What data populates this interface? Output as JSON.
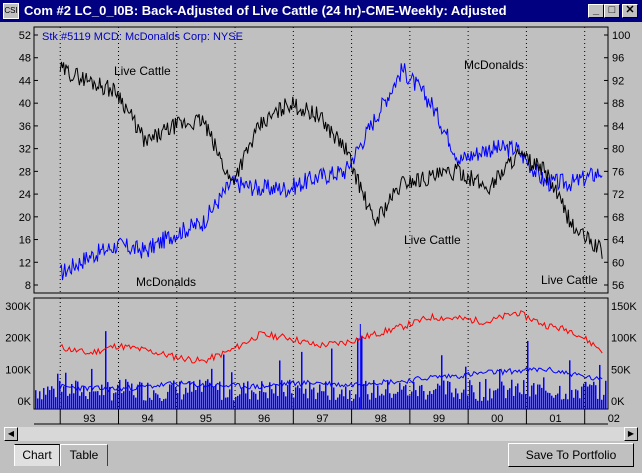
{
  "window": {
    "title": "Com #2 LC_0_I0B: Back-Adjusted of Live Cattle (24 hr)-CME-Weekly: Adjusted",
    "sys_icon": "CSI",
    "minimize_glyph": "_",
    "maximize_glyph": "□",
    "close_glyph": "✕"
  },
  "price_panel": {
    "overlay_label": "Stk #5119 MCD: McDonalds Corp: NYSE",
    "left_axis_ticks": [
      "52",
      "48",
      "44",
      "40",
      "36",
      "32",
      "28",
      "24",
      "20",
      "16",
      "12",
      "8"
    ],
    "right_axis_ticks": [
      "100",
      "96",
      "92",
      "88",
      "84",
      "80",
      "76",
      "72",
      "68",
      "64",
      "60",
      "56"
    ],
    "annotations": {
      "live_cattle_top": "Live Cattle",
      "mcdonalds_top": "McDonalds",
      "live_cattle_mid": "Live Cattle",
      "mcdonalds_bottom": "McDonalds",
      "live_cattle_right": "Live Cattle"
    },
    "colors": {
      "live_cattle": "#000000",
      "mcdonalds": "#0000ff"
    }
  },
  "volume_panel": {
    "left_axis_ticks": [
      "300K",
      "200K",
      "100K",
      "0K"
    ],
    "right_axis_ticks": [
      "150K",
      "100K",
      "50K",
      "0K"
    ],
    "colors": {
      "open_interest": "#ff0000",
      "volume": "#0000ff"
    }
  },
  "x_axis": {
    "year_labels": [
      "93",
      "94",
      "95",
      "96",
      "97",
      "98",
      "99",
      "00",
      "01",
      "02"
    ]
  },
  "chart_data": [
    {
      "type": "line",
      "title": "Back-Adjusted of Live Cattle (24 hr)-CME-Weekly: Adjusted",
      "x": [
        "1993.0",
        "1993.5",
        "1994.0",
        "1994.5",
        "1995.0",
        "1995.5",
        "1996.0",
        "1996.5",
        "1997.0",
        "1997.5",
        "1998.0",
        "1998.5",
        "1999.0",
        "1999.5",
        "2000.0",
        "2000.5",
        "2001.0",
        "2001.5",
        "2002.0",
        "2002.3"
      ],
      "series": [
        {
          "name": "Live Cattle",
          "axis": "left",
          "ylim": [
            8,
            52
          ],
          "values": [
            46,
            44,
            42,
            33,
            36,
            37,
            26,
            36,
            40,
            38,
            32,
            19,
            26,
            27,
            28,
            25,
            31,
            28,
            18,
            14
          ]
        },
        {
          "name": "McDonalds",
          "axis": "right",
          "ylim": [
            56,
            100
          ],
          "values": [
            58,
            61,
            63,
            62,
            65,
            67,
            74,
            73,
            73,
            75,
            76,
            85,
            94,
            88,
            78,
            80,
            80,
            74,
            74,
            76
          ]
        }
      ]
    },
    {
      "type": "line",
      "x": [
        "1993.0",
        "1993.5",
        "1994.0",
        "1994.5",
        "1995.0",
        "1995.5",
        "1996.0",
        "1996.5",
        "1997.0",
        "1997.5",
        "1998.0",
        "1998.5",
        "1999.0",
        "1999.5",
        "2000.0",
        "2000.5",
        "2001.0",
        "2001.5",
        "2002.0",
        "2002.3"
      ],
      "series": [
        {
          "axis": "left",
          "ylim": [
            0,
            300000
          ],
          "values": [
            170000,
            150000,
            175000,
            160000,
            140000,
            125000,
            160000,
            210000,
            200000,
            175000,
            185000,
            210000,
            235000,
            265000,
            260000,
            250000,
            280000,
            240000,
            220000,
            160000
          ]
        },
        {
          "axis": "left",
          "ylim": [
            0,
            300000
          ],
          "values": [
            45000,
            40000,
            38000,
            45000,
            55000,
            50000,
            48000,
            45000,
            55000,
            58000,
            50000,
            60000,
            62000,
            75000,
            80000,
            90000,
            95000,
            100000,
            85000,
            65000
          ]
        }
      ]
    }
  ]
}
